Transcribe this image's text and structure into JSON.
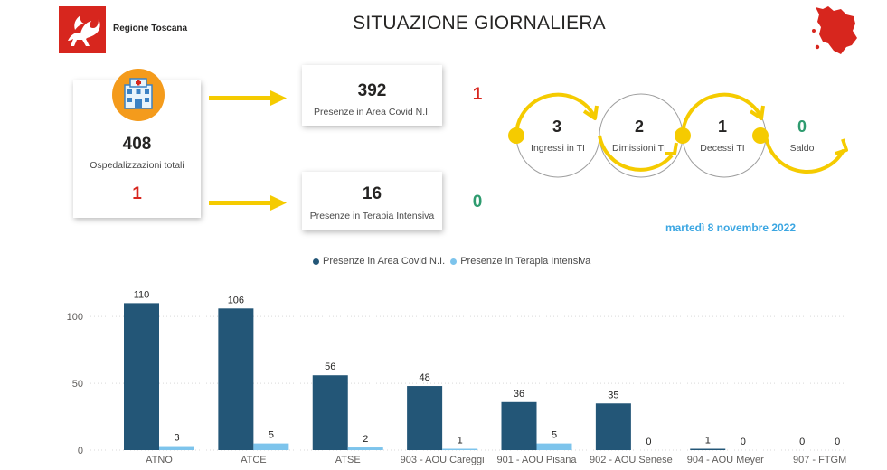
{
  "header": {
    "logo_text": "Regione Toscana",
    "title": "SITUAZIONE GIORNALIERA"
  },
  "total_card": {
    "value": "408",
    "label": "Ospedalizzazioni totali",
    "delta": "1"
  },
  "covid_card": {
    "value": "392",
    "label": "Presenze in Area Covid N.I.",
    "delta": "1"
  },
  "ti_card": {
    "value": "16",
    "label": "Presenze in Terapia Intensiva",
    "delta": "0"
  },
  "ti_flow": [
    {
      "value": "3",
      "label": "Ingressi in TI"
    },
    {
      "value": "2",
      "label": "Dimissioni TI"
    },
    {
      "value": "1",
      "label": "Decessi TI"
    },
    {
      "value": "0",
      "label": "Saldo"
    }
  ],
  "date": "martedì 8 novembre 2022",
  "colors": {
    "covid": "#235677",
    "ti": "#7dc4ec",
    "red": "#d7261e",
    "green": "#2e9b6f",
    "yellow": "#f5cb00",
    "orange": "#f49b1c",
    "date_blue": "#3ba6e2"
  },
  "chart_data": {
    "type": "bar",
    "categories": [
      "ATNO",
      "ATCE",
      "ATSE",
      "903 - AOU Careggi",
      "901 - AOU Pisana",
      "902 - AOU Senese",
      "904 - AOU Meyer",
      "907 - FTGM"
    ],
    "series": [
      {
        "name": "Presenze in Area Covid N.I.",
        "values": [
          110,
          106,
          56,
          48,
          36,
          35,
          1,
          0
        ]
      },
      {
        "name": "Presenze in Terapia Intensiva",
        "values": [
          3,
          5,
          2,
          1,
          5,
          0,
          0,
          0
        ]
      }
    ],
    "yticks": [
      0,
      50,
      100
    ],
    "ylim": [
      0,
      115
    ],
    "legend_position": "top-center",
    "grid": true
  }
}
